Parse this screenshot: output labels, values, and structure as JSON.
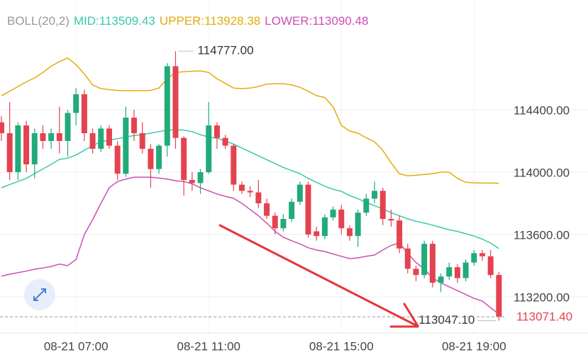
{
  "chart_data": {
    "type": "candlestick",
    "indicator": "BOLL(20,2)",
    "categories": [
      null,
      null,
      null,
      null,
      null,
      null,
      null,
      null,
      null,
      "08-21 07:00",
      null,
      null,
      null,
      null,
      null,
      null,
      null,
      null,
      null,
      null,
      null,
      null,
      null,
      null,
      null,
      "08-21 11:00",
      null,
      null,
      null,
      null,
      null,
      null,
      null,
      null,
      null,
      null,
      null,
      null,
      null,
      null,
      null,
      "08-21 15:00",
      null,
      null,
      null,
      null,
      null,
      null,
      null,
      null,
      null,
      null,
      null,
      null,
      null,
      null,
      null,
      "08-21 19:00",
      null,
      null,
      null
    ],
    "open": [
      114320,
      114250,
      114000,
      114300,
      114050,
      114250,
      114200,
      114250,
      114200,
      114380,
      114500,
      114250,
      114150,
      114280,
      114170,
      113990,
      114350,
      114250,
      114150,
      114020,
      114170,
      114680,
      114220,
      113950,
      113930,
      114000,
      114300,
      114220,
      114170,
      113920,
      113880,
      113870,
      113800,
      113720,
      113640,
      113700,
      113810,
      113920,
      113620,
      113590,
      113710,
      113760,
      113640,
      113590,
      113740,
      113830,
      113880,
      113700,
      113690,
      113510,
      113380,
      113340,
      113540,
      113290,
      113330,
      113390,
      113320,
      113420,
      113480,
      113460,
      113340
    ],
    "high": [
      114360,
      114450,
      114320,
      114330,
      114280,
      114300,
      114280,
      114420,
      114400,
      114540,
      114530,
      114280,
      114300,
      114300,
      114200,
      114420,
      114400,
      114320,
      114180,
      114180,
      114700,
      114777,
      114230,
      114000,
      114020,
      114450,
      114320,
      114240,
      114180,
      113940,
      113910,
      113950,
      113830,
      113740,
      113730,
      113830,
      113940,
      113940,
      113650,
      113730,
      113780,
      113790,
      113660,
      113760,
      113860,
      113940,
      113900,
      113760,
      113720,
      113540,
      113400,
      113560,
      113560,
      113350,
      113420,
      113410,
      113440,
      113500,
      113500,
      113500,
      113360
    ],
    "low": [
      114200,
      113950,
      113950,
      114000,
      113960,
      114150,
      114150,
      114120,
      114100,
      114300,
      114200,
      114120,
      114130,
      114150,
      113950,
      113970,
      114200,
      114120,
      113900,
      113990,
      114100,
      114150,
      113850,
      113880,
      113860,
      113990,
      114150,
      114150,
      113880,
      113860,
      113840,
      113770,
      113700,
      113600,
      113620,
      113680,
      113790,
      113580,
      113560,
      113570,
      113690,
      113600,
      113560,
      113520,
      113720,
      113800,
      113660,
      113650,
      113480,
      113350,
      113300,
      113320,
      113260,
      113230,
      113310,
      113290,
      113300,
      113400,
      113430,
      113320,
      113047.1
    ],
    "close": [
      114250,
      114000,
      114300,
      114050,
      114250,
      114200,
      114250,
      114200,
      114380,
      114500,
      114250,
      114150,
      114280,
      114170,
      113990,
      114350,
      114250,
      114150,
      114020,
      114170,
      114680,
      114220,
      113950,
      113930,
      114000,
      114300,
      114220,
      114170,
      113920,
      113880,
      113870,
      113800,
      113720,
      113640,
      113700,
      113810,
      113920,
      113600,
      113590,
      113710,
      113760,
      113640,
      113590,
      113740,
      113830,
      113880,
      113700,
      113690,
      113510,
      113380,
      113340,
      113540,
      113290,
      113330,
      113390,
      113320,
      113420,
      113480,
      113460,
      113340,
      113071.4
    ],
    "up_color": "#22ab7a",
    "down_color": "#e5424f",
    "bands": [
      {
        "name": "MID:113509.43",
        "color": "#3cc8a8",
        "values": [
          113900,
          113920,
          113940,
          113960,
          113991,
          114020,
          114050,
          114082,
          114090,
          114110,
          114140,
          114170,
          114195,
          114205,
          114215,
          114225,
          114235,
          114241,
          114250,
          114260,
          114270,
          114273,
          114270,
          114260,
          114240,
          114225,
          114218,
          114200,
          114180,
          114155,
          114130,
          114105,
          114080,
          114055,
          114030,
          114010,
          113991,
          113960,
          113935,
          113910,
          113890,
          113877,
          113850,
          113830,
          113805,
          113785,
          113764,
          113740,
          113720,
          113700,
          113685,
          113673,
          113660,
          113645,
          113630,
          113620,
          113605,
          113590,
          113570,
          113545,
          113509.43
        ]
      },
      {
        "name": "UPPER:113928.38",
        "color": "#e3ac0c",
        "values": [
          114490,
          114520,
          114550,
          114580,
          114605,
          114640,
          114680,
          114710,
          114732,
          114690,
          114630,
          114560,
          114536,
          114530,
          114525,
          114523,
          114523,
          114523,
          114525,
          114540,
          114600,
          114640,
          114645,
          114648,
          114650,
          114640,
          114600,
          114570,
          114540,
          114536,
          114540,
          114550,
          114565,
          114568,
          114568,
          114560,
          114545,
          114520,
          114491,
          114480,
          114420,
          114300,
          114264,
          114250,
          114220,
          114195,
          114140,
          114060,
          113990,
          113977,
          113980,
          113985,
          113990,
          114000,
          114000,
          113960,
          113935,
          113932,
          113930,
          113930,
          113928.38
        ]
      },
      {
        "name": "LOWER:113090.48",
        "color": "#cc4fb4",
        "values": [
          113332,
          113345,
          113355,
          113365,
          113377,
          113385,
          113395,
          113410,
          113400,
          113440,
          113600,
          113695,
          113800,
          113900,
          113940,
          113955,
          113968,
          113968,
          113968,
          113962,
          113955,
          113945,
          113940,
          113925,
          113900,
          113880,
          113860,
          113845,
          113832,
          113800,
          113760,
          113720,
          113673,
          113620,
          113582,
          113560,
          113540,
          113515,
          113500,
          113491,
          113475,
          113460,
          113445,
          113450,
          113460,
          113468,
          113500,
          113530,
          113546,
          113480,
          113420,
          113380,
          113320,
          113290,
          113264,
          113240,
          113215,
          113190,
          113173,
          113130,
          113090.48
        ]
      }
    ],
    "ylim": [
      112968,
      115105
    ],
    "yticks": [
      {
        "value": 113200,
        "label": "113200.00"
      },
      {
        "value": 113600,
        "label": "113600.00"
      },
      {
        "value": 114000,
        "label": "114000.00"
      },
      {
        "value": 114400,
        "label": "114400.00"
      }
    ],
    "grid": true,
    "high_label": {
      "value": 114777,
      "label": "114777.00"
    },
    "low_label": {
      "value": 113047.1,
      "label": "113047.10"
    },
    "last_price": {
      "value": 113071.4,
      "label": "113071.40"
    }
  }
}
